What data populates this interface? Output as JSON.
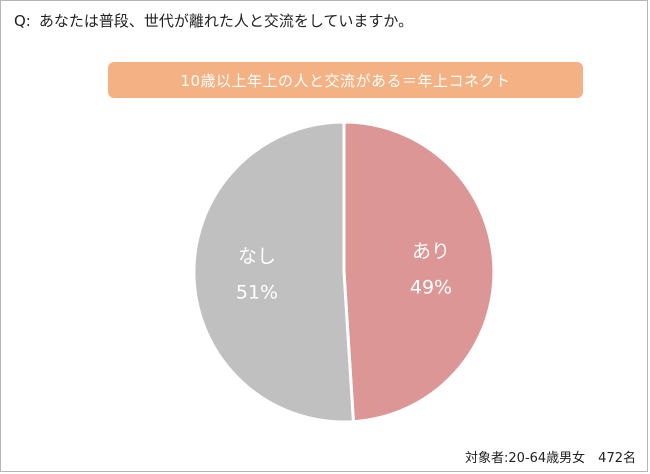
{
  "question": {
    "prefix": "Q:",
    "text": "あなたは普段、世代が離れた人と交流をしていますか。"
  },
  "banner": {
    "text": "10歳以上年上の人と交流がある＝年上コネクト",
    "color": "#f4b183"
  },
  "footnote": "対象者:20-64歳男女　472名",
  "chart_data": {
    "type": "pie",
    "slices": [
      {
        "label": "あり",
        "value": 49,
        "value_label": "49%",
        "color": "#dc9695"
      },
      {
        "label": "なし",
        "value": 51,
        "value_label": "51%",
        "color": "#c0c0c0"
      }
    ],
    "start": "12 o'clock",
    "direction": "clockwise"
  }
}
